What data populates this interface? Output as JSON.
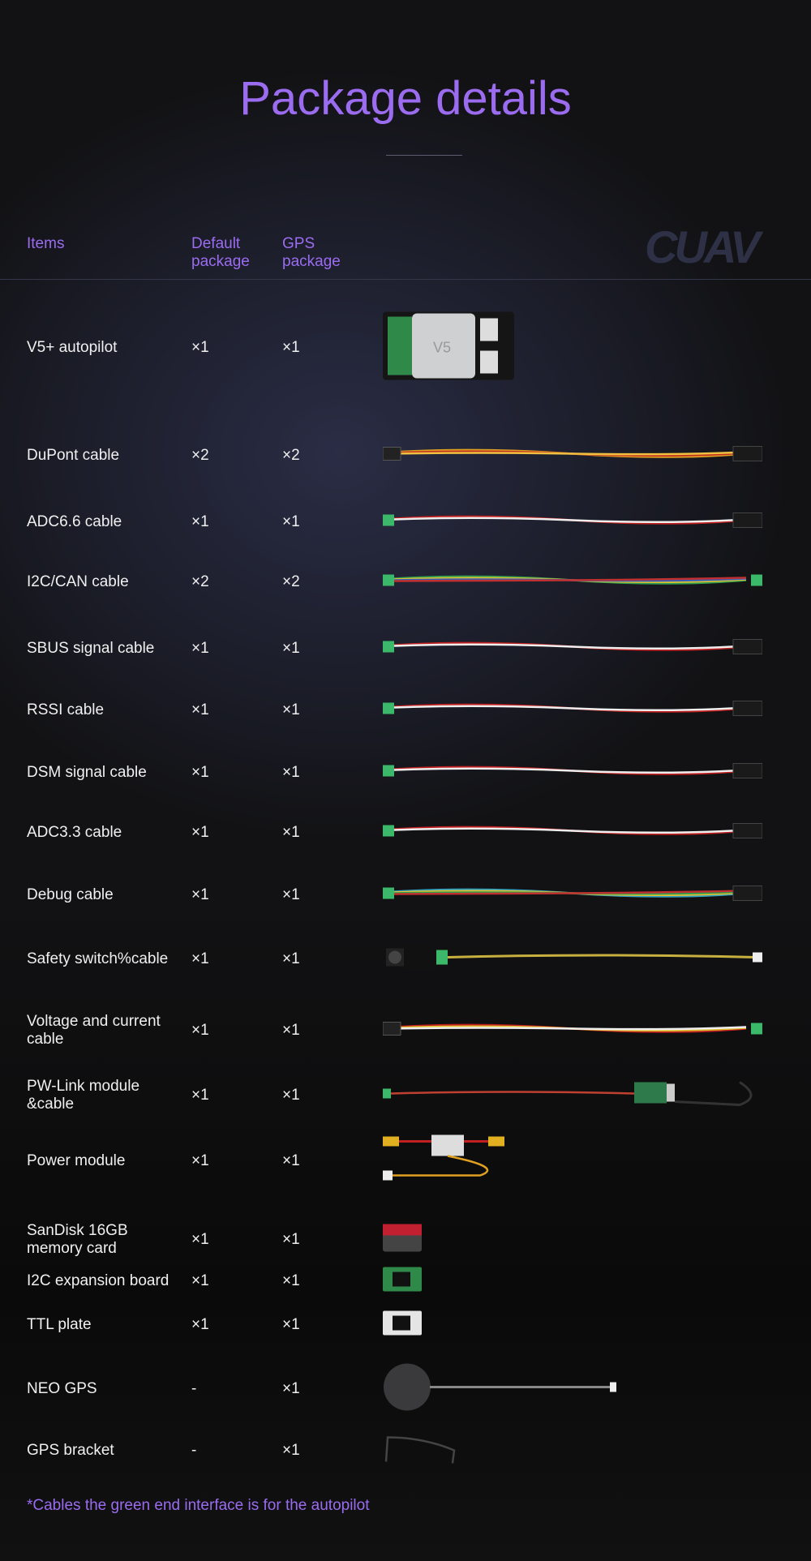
{
  "title": "Package details",
  "logo": "CUAV",
  "colors": {
    "accent": "#9b6cf0",
    "background": "#121214",
    "connector": "#3bb86a"
  },
  "headers": {
    "items": "Items",
    "default": "Default package",
    "gps": "GPS package"
  },
  "rows": [
    {
      "name": "V5+ autopilot",
      "default": "×1",
      "gps": "×1",
      "icon": "autopilot-board"
    },
    {
      "name": "DuPont cable",
      "default": "×2",
      "gps": "×2",
      "icon": "cable"
    },
    {
      "name": "ADC6.6 cable",
      "default": "×1",
      "gps": "×1",
      "icon": "cable"
    },
    {
      "name": "I2C/CAN cable",
      "default": "×2",
      "gps": "×2",
      "icon": "cable"
    },
    {
      "name": "SBUS signal cable",
      "default": "×1",
      "gps": "×1",
      "icon": "cable"
    },
    {
      "name": "RSSI cable",
      "default": "×1",
      "gps": "×1",
      "icon": "cable"
    },
    {
      "name": "DSM signal cable",
      "default": "×1",
      "gps": "×1",
      "icon": "cable"
    },
    {
      "name": "ADC3.3 cable",
      "default": "×1",
      "gps": "×1",
      "icon": "cable"
    },
    {
      "name": "Debug cable",
      "default": "×1",
      "gps": "×1",
      "icon": "cable"
    },
    {
      "name": "Safety switch%cable",
      "default": "×1",
      "gps": "×1",
      "icon": "safety-switch"
    },
    {
      "name": "Voltage and current cable",
      "default": "×1",
      "gps": "×1",
      "icon": "cable"
    },
    {
      "name": "PW-Link module &cable",
      "default": "×1",
      "gps": "×1",
      "icon": "pw-link"
    },
    {
      "name": "Power module",
      "default": "×1",
      "gps": "×1",
      "icon": "power-module"
    },
    {
      "name": "SanDisk 16GB memory card",
      "default": "×1",
      "gps": "×1",
      "icon": "sd-card"
    },
    {
      "name": "I2C expansion board",
      "default": "×1",
      "gps": "×1",
      "icon": "board"
    },
    {
      "name": "TTL plate",
      "default": "×1",
      "gps": "×1",
      "icon": "board"
    },
    {
      "name": "NEO GPS",
      "default": "-",
      "gps": "×1",
      "icon": "gps"
    },
    {
      "name": "GPS bracket",
      "default": "-",
      "gps": "×1",
      "icon": "bracket"
    }
  ],
  "footnote": "*Cables the green end interface is for the autopilot"
}
